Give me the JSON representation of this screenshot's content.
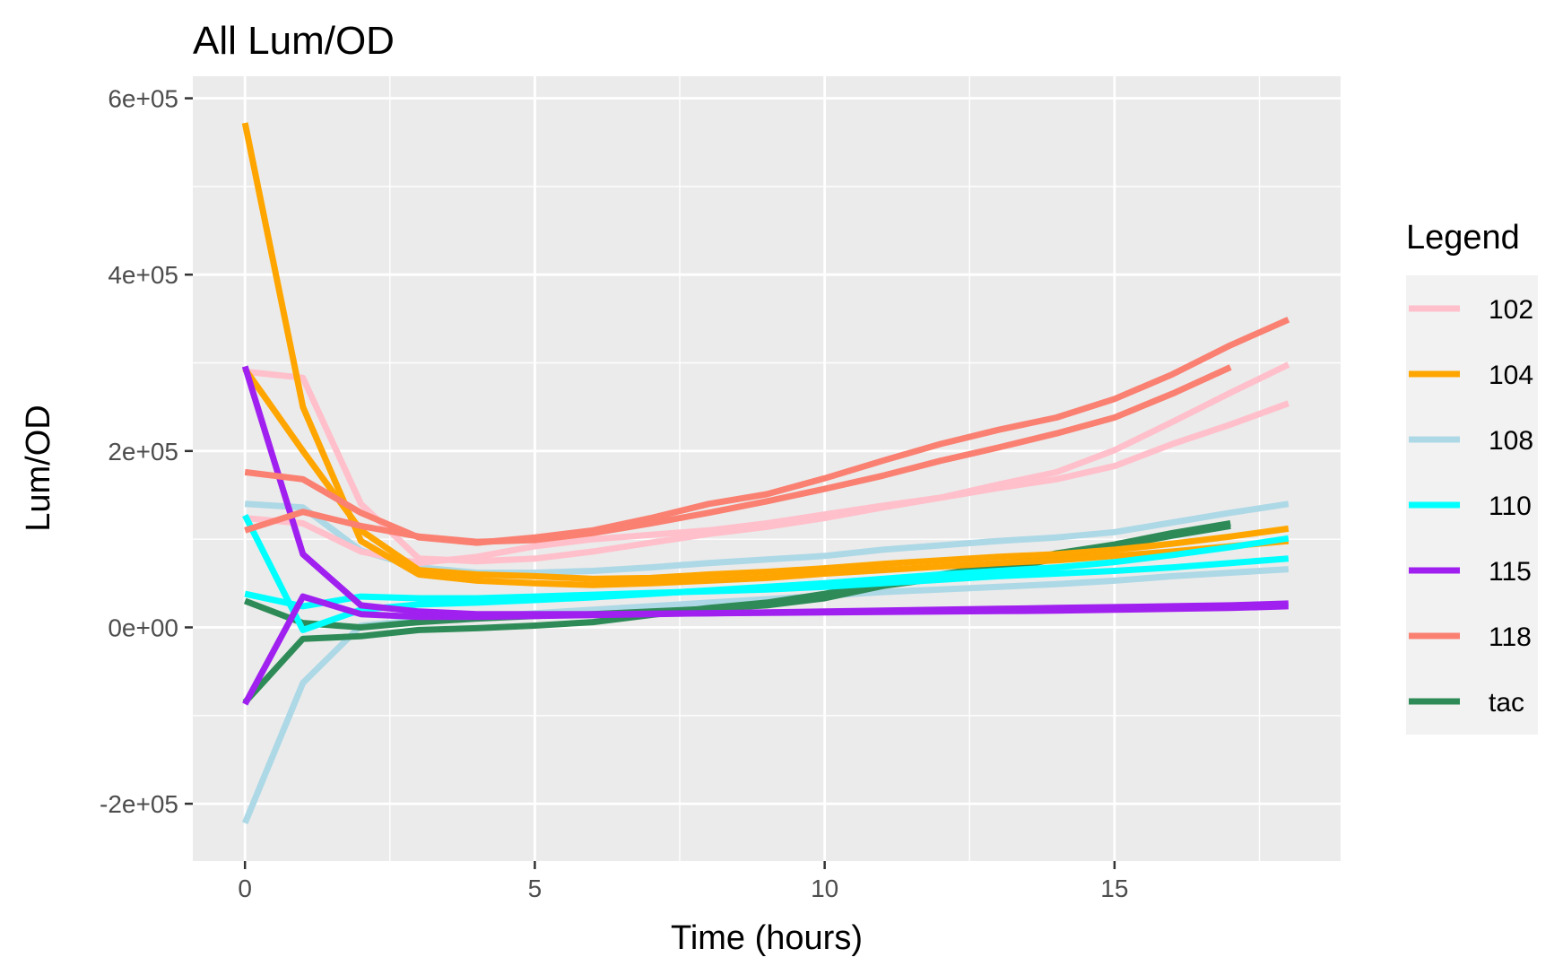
{
  "chart_data": {
    "type": "line",
    "title": "All Lum/OD",
    "xlabel": "Time (hours)",
    "ylabel": "Lum/OD",
    "xlim": [
      -0.9,
      18.9
    ],
    "ylim": [
      -265000,
      625000
    ],
    "x_ticks": [
      0,
      5,
      10,
      15
    ],
    "x_tick_labels": [
      "0",
      "5",
      "10",
      "15"
    ],
    "x_minor_ticks": [
      2.5,
      7.5,
      12.5,
      17.5
    ],
    "y_ticks": [
      -200000,
      0,
      200000,
      400000,
      600000
    ],
    "y_tick_labels": [
      "-2e+05",
      "0e+00",
      "2e+05",
      "4e+05",
      "6e+05"
    ],
    "y_minor_ticks": [
      -100000,
      100000,
      300000,
      500000
    ],
    "grid": true,
    "legend": {
      "title": "Legend",
      "position": "right",
      "entries": [
        {
          "label": "102",
          "color": "#FFC0CB"
        },
        {
          "label": "104",
          "color": "#FFA500"
        },
        {
          "label": "108",
          "color": "#ADD8E6"
        },
        {
          "label": "110",
          "color": "#00FFFF"
        },
        {
          "label": "115",
          "color": "#A020F0"
        },
        {
          "label": "118",
          "color": "#FA8072"
        },
        {
          "label": "tac",
          "color": "#2E8B57"
        }
      ]
    },
    "series": [
      {
        "name": "108",
        "color": "#ADD8E6",
        "x": [
          0,
          1,
          2,
          3,
          4,
          5,
          6,
          7,
          8,
          9,
          10,
          11,
          12,
          13,
          14,
          15,
          16,
          17,
          18
        ],
        "y": [
          -222000,
          -63000,
          2000,
          8000,
          12000,
          16000,
          20000,
          24000,
          28000,
          32000,
          36000,
          40000,
          43000,
          46000,
          49000,
          53000,
          58000,
          62000,
          66000
        ]
      },
      {
        "name": "108",
        "color": "#ADD8E6",
        "x": [
          0,
          1,
          2,
          3,
          4,
          5,
          6,
          7,
          8,
          9,
          10,
          11,
          12,
          13,
          14,
          15,
          16,
          17,
          18
        ],
        "y": [
          140000,
          136000,
          87000,
          68000,
          62000,
          62000,
          64000,
          68000,
          73000,
          77000,
          81000,
          88000,
          93000,
          98000,
          102000,
          108000,
          119000,
          130000,
          140000
        ]
      },
      {
        "name": "tac",
        "color": "#2E8B57",
        "x": [
          0,
          1,
          2,
          3,
          4,
          5,
          6,
          7,
          8,
          9,
          10,
          11,
          12,
          13,
          14,
          15,
          16,
          17
        ],
        "y": [
          -85000,
          -13000,
          -10000,
          -3000,
          -1000,
          2000,
          6000,
          14000,
          22000,
          28000,
          38000,
          50000,
          60000,
          70000,
          84000,
          94000,
          107000,
          118000
        ]
      },
      {
        "name": "tac",
        "color": "#2E8B57",
        "x": [
          0,
          1,
          2,
          3,
          4,
          5,
          6,
          7,
          8,
          9,
          10,
          11,
          12,
          13,
          14,
          15,
          16,
          17
        ],
        "y": [
          30000,
          5000,
          0,
          6000,
          10000,
          13000,
          15000,
          18000,
          21000,
          25000,
          33000,
          47000,
          56000,
          65000,
          78000,
          92000,
          104000,
          115000
        ]
      },
      {
        "name": "102",
        "color": "#FFC0CB",
        "x": [
          0,
          1,
          2,
          3,
          4,
          5,
          6,
          7,
          8,
          9,
          10,
          11,
          12,
          13,
          14,
          15,
          16,
          17,
          18
        ],
        "y": [
          290000,
          283000,
          140000,
          78000,
          75000,
          78000,
          86000,
          96000,
          106000,
          114000,
          124000,
          136000,
          147000,
          162000,
          176000,
          201000,
          233000,
          266000,
          298000
        ]
      },
      {
        "name": "102",
        "color": "#FFC0CB",
        "x": [
          0,
          1,
          2,
          3,
          4,
          5,
          6,
          7,
          8,
          9,
          10,
          11,
          12,
          13,
          14,
          15,
          16,
          17,
          18
        ],
        "y": [
          124000,
          118000,
          86000,
          73000,
          80000,
          92000,
          100000,
          105000,
          110000,
          118000,
          128000,
          138000,
          147000,
          158000,
          168000,
          183000,
          208000,
          230000,
          254000
        ]
      },
      {
        "name": "104",
        "color": "#FFA500",
        "x": [
          0,
          1,
          2,
          3,
          4,
          5,
          6,
          7,
          8,
          9,
          10,
          11,
          12,
          13,
          14,
          15,
          16,
          17,
          18
        ],
        "y": [
          572000,
          250000,
          98000,
          60000,
          53000,
          50000,
          48000,
          50000,
          53000,
          56000,
          61000,
          65000,
          69000,
          73000,
          76000,
          81000,
          86000,
          92000,
          98000
        ]
      },
      {
        "name": "104",
        "color": "#FFA500",
        "x": [
          0,
          1,
          2,
          3,
          4,
          5,
          6,
          7,
          8,
          9,
          10,
          11,
          12,
          13,
          14,
          15,
          16,
          17,
          18
        ],
        "y": [
          293000,
          200000,
          110000,
          65000,
          60000,
          58000,
          55000,
          56000,
          60000,
          63000,
          67000,
          72000,
          76000,
          80000,
          83000,
          88000,
          95000,
          103000,
          112000
        ]
      },
      {
        "name": "110",
        "color": "#00FFFF",
        "x": [
          0,
          1,
          2,
          3,
          4,
          5,
          6,
          7,
          8,
          9,
          10,
          11,
          12,
          13,
          14,
          15,
          16,
          17,
          18
        ],
        "y": [
          127000,
          -3000,
          20000,
          26000,
          28000,
          31000,
          34000,
          38000,
          42000,
          46000,
          50000,
          55000,
          60000,
          64000,
          68000,
          74000,
          82000,
          91000,
          101000
        ]
      },
      {
        "name": "110",
        "color": "#00FFFF",
        "x": [
          0,
          1,
          2,
          3,
          4,
          5,
          6,
          7,
          8,
          9,
          10,
          11,
          12,
          13,
          14,
          15,
          16,
          17,
          18
        ],
        "y": [
          38000,
          24000,
          35000,
          33000,
          33000,
          35000,
          37000,
          39000,
          41000,
          43000,
          46000,
          50000,
          54000,
          58000,
          61000,
          64000,
          68000,
          73000,
          78000
        ]
      },
      {
        "name": "115",
        "color": "#A020F0",
        "x": [
          0,
          1,
          2,
          3,
          4,
          5,
          6,
          7,
          8,
          9,
          10,
          11,
          12,
          13,
          14,
          15,
          16,
          17,
          18
        ],
        "y": [
          296000,
          83000,
          25000,
          18000,
          15000,
          15000,
          15000,
          15500,
          16000,
          16500,
          17000,
          17500,
          18000,
          18500,
          19000,
          20000,
          21000,
          22000,
          24000
        ]
      },
      {
        "name": "115",
        "color": "#A020F0",
        "x": [
          0,
          1,
          2,
          3,
          4,
          5,
          6,
          7,
          8,
          9,
          10,
          11,
          12,
          13,
          14,
          15,
          16,
          17,
          18
        ],
        "y": [
          -87000,
          35000,
          15000,
          12000,
          12000,
          13000,
          14000,
          15000,
          16000,
          17000,
          18000,
          19000,
          20000,
          21000,
          22000,
          23000,
          24000,
          25000,
          27000
        ]
      },
      {
        "name": "118",
        "color": "#FA8072",
        "x": [
          0,
          1,
          2,
          3,
          4,
          5,
          6,
          7,
          8,
          9,
          10,
          11,
          12,
          13,
          14,
          15,
          16,
          17,
          18
        ],
        "y": [
          176000,
          168000,
          130000,
          102000,
          96000,
          102000,
          110000,
          124000,
          140000,
          151000,
          169000,
          189000,
          208000,
          224000,
          238000,
          259000,
          287000,
          320000,
          349000
        ]
      },
      {
        "name": "118",
        "color": "#FA8072",
        "x": [
          0,
          1,
          2,
          3,
          4,
          5,
          6,
          7,
          8,
          9,
          10,
          11,
          12,
          13,
          14,
          15,
          16,
          17
        ],
        "y": [
          110000,
          131000,
          115000,
          103000,
          97000,
          99000,
          107000,
          118000,
          130000,
          143000,
          157000,
          172000,
          189000,
          204000,
          220000,
          238000,
          265000,
          295000
        ]
      }
    ]
  }
}
